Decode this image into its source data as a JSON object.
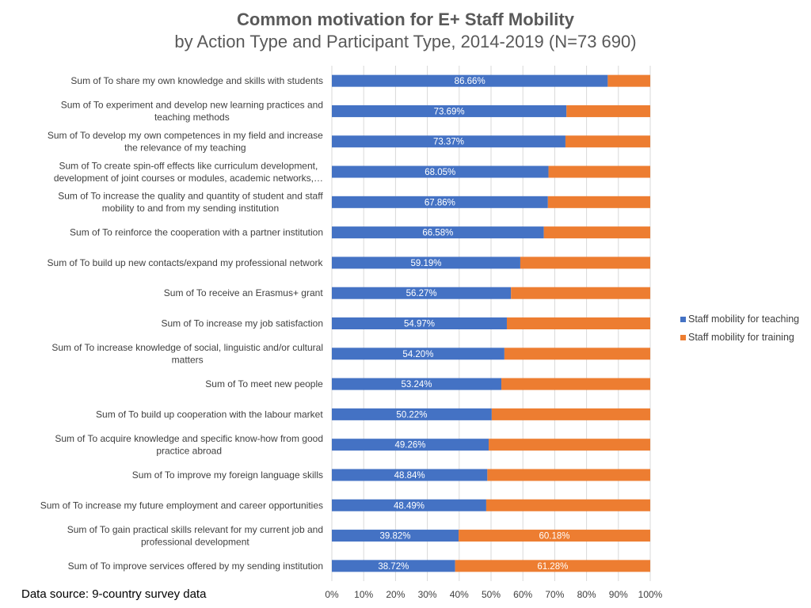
{
  "title": {
    "line1": "Common motivation for E+ Staff Mobility",
    "line2": "by Action Type and Participant Type, 2014-2019 (N=73 690)"
  },
  "source": "Data source: 9-country survey data",
  "colors": {
    "teaching": "#4472C4",
    "training": "#ED7D31",
    "grid": "#D9D9D9"
  },
  "chart_data": {
    "type": "bar",
    "orientation": "horizontal",
    "stacked": "100%",
    "title": "Common motivation for E+ Staff Mobility by Action Type and Participant Type, 2014-2019 (N=73 690)",
    "xlim": [
      0,
      100
    ],
    "xticks": [
      "0%",
      "10%",
      "20%",
      "30%",
      "40%",
      "50%",
      "60%",
      "70%",
      "80%",
      "90%",
      "100%"
    ],
    "legend_position": "right",
    "categories": [
      [
        "Sum of To share my own knowledge and skills with students"
      ],
      [
        "Sum of To experiment and develop new learning practices and",
        "teaching methods"
      ],
      [
        "Sum of To develop my own competences in my field and increase",
        "the relevance of my teaching"
      ],
      [
        "Sum of To create spin-off effects like curriculum development,",
        "development of joint courses or modules, academic networks,…"
      ],
      [
        "Sum of To increase the quality and quantity of student and staff",
        "mobility to and from my sending institution"
      ],
      [
        "Sum of To reinforce the cooperation with a partner institution"
      ],
      [
        "Sum of To build up new contacts/expand my professional network"
      ],
      [
        "Sum of To receive an Erasmus+ grant"
      ],
      [
        "Sum of To increase my job satisfaction"
      ],
      [
        "Sum of To increase knowledge of social, linguistic and/or cultural",
        "matters"
      ],
      [
        "Sum of To meet new people"
      ],
      [
        "Sum of To build up cooperation with the labour market"
      ],
      [
        "Sum of To acquire knowledge and specific know-how from good",
        "practice abroad"
      ],
      [
        "Sum of To improve my foreign language skills"
      ],
      [
        "Sum of To increase my future employment and career opportunities"
      ],
      [
        "Sum of To gain practical skills relevant for my current job and",
        "professional development"
      ],
      [
        "Sum of To improve services offered by my sending institution"
      ]
    ],
    "series": [
      {
        "name": "Staff mobility for teaching",
        "values": [
          86.66,
          73.69,
          73.37,
          68.05,
          67.86,
          66.58,
          59.19,
          56.27,
          54.97,
          54.2,
          53.24,
          50.22,
          49.26,
          48.84,
          48.49,
          39.82,
          38.72
        ],
        "labels": [
          "86.66%",
          "73.69%",
          "73.37%",
          "68.05%",
          "67.86%",
          "66.58%",
          "59.19%",
          "56.27%",
          "54.97%",
          "54.20%",
          "53.24%",
          "50.22%",
          "49.26%",
          "48.84%",
          "48.49%",
          "39.82%",
          "38.72%"
        ]
      },
      {
        "name": "Staff mobility for training",
        "values": [
          13.34,
          26.31,
          26.63,
          31.95,
          32.14,
          33.42,
          40.81,
          43.73,
          45.03,
          45.8,
          46.76,
          49.78,
          50.74,
          51.16,
          51.51,
          60.18,
          61.28
        ],
        "labels": [
          "",
          "",
          "",
          "",
          "",
          "",
          "",
          "",
          "",
          "",
          "",
          "",
          "",
          "",
          "",
          "60.18%",
          "61.28%"
        ]
      }
    ]
  }
}
